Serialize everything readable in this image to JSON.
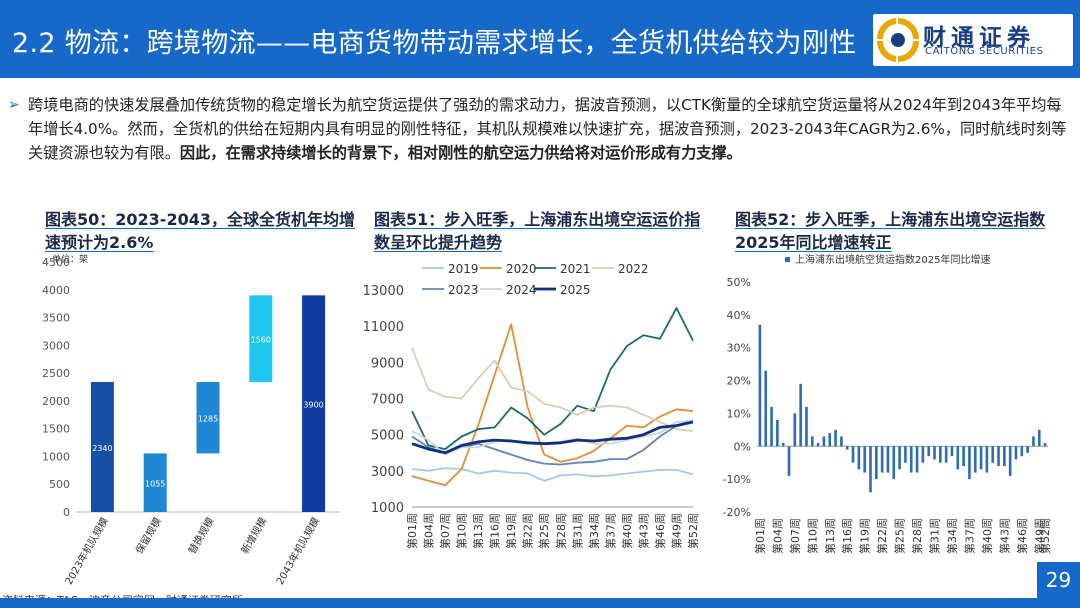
{
  "header": {
    "title": "2.2 物流：跨境物流——电商货物带动需求增长，全货机供给较为刚性",
    "logo_cn": "财通证券",
    "logo_en": "CAITONG SECURITIES"
  },
  "intro": {
    "part1": "跨境电商的快速发展叠加传统货物的稳定增长为航空货运提供了强劲的需求动力，据波音预测，以CTK衡量的全球航空货运量将从2024年到2043年平均每年增长4.0%。然而，全货机的供给在短期内具有明显的刚性特征，其机队规模难以快速扩充，据波音预测，2023-2043年CAGR为2.6%，同时航线时刻等关键资源也较为有限。",
    "part2": "因此，在需求持续增长的背景下，相对刚性的航空运力供给将对运价形成有力支撑。"
  },
  "colors": {
    "header_bg": "#1769c9",
    "c1_dark": "#1550a5",
    "c1_mid": "#1f87d6",
    "c1_light": "#1ec8f0",
    "c1_end": "#0f3aa0",
    "c3_bar": "#2f6db0"
  },
  "chart_titles": {
    "c1": "图表50：2023-2043，全球全货机年均增速预计为2.6%",
    "c2": "图表51：步入旺季，上海浦东出境空运运价指数呈环比提升趋势",
    "c3": "图表52：步入旺季，上海浦东出境空运指数2025年同比增速转正"
  },
  "footer": {
    "source": "资料来源：TAC，波音公司官网，财通证券研究所",
    "page": "29"
  },
  "chart_data": [
    {
      "type": "bar",
      "subtype": "waterfall",
      "unit": "单位：架",
      "categories": [
        "2023年机队规模",
        "保留规模",
        "替换规模",
        "新增规模",
        "2043年机队规模"
      ],
      "values": [
        2340,
        1055,
        1285,
        1560,
        3900
      ],
      "bases": [
        0,
        0,
        1055,
        2340,
        0
      ],
      "bar_colors": [
        "#1550a5",
        "#1f87d6",
        "#1f87d6",
        "#1ec8f0",
        "#0f3aa0"
      ],
      "ylim": [
        0,
        4500
      ],
      "yticks": [
        0,
        500,
        1000,
        1500,
        2000,
        2500,
        3000,
        3500,
        4000,
        4500
      ]
    },
    {
      "type": "line",
      "x": [
        "第01周",
        "第04周",
        "第07周",
        "第10周",
        "第13周",
        "第16周",
        "第19周",
        "第22周",
        "第25周",
        "第28周",
        "第31周",
        "第34周",
        "第37周",
        "第40周",
        "第43周",
        "第46周",
        "第49周",
        "第52周"
      ],
      "ylim": [
        1000,
        13000
      ],
      "yticks": [
        1000,
        3000,
        5000,
        7000,
        9000,
        11000,
        13000
      ],
      "legend_position": "top",
      "series": [
        {
          "name": "2019",
          "color": "#a9c6e8",
          "width": 1.8,
          "values": [
            3100,
            3000,
            3150,
            3100,
            2850,
            3000,
            2900,
            2850,
            2450,
            2750,
            2800,
            2700,
            2750,
            2850,
            2950,
            3050,
            3050,
            2800
          ]
        },
        {
          "name": "2020",
          "color": "#e28d3a",
          "width": 1.8,
          "values": [
            2700,
            2450,
            2200,
            3100,
            5500,
            8300,
            11100,
            6500,
            3900,
            3500,
            3700,
            4100,
            4800,
            5500,
            5400,
            6000,
            6400,
            6300
          ]
        },
        {
          "name": "2021",
          "color": "#1d6b68",
          "width": 1.8,
          "values": [
            6300,
            4400,
            4200,
            4900,
            5300,
            5400,
            6500,
            5900,
            5000,
            5600,
            6600,
            6300,
            8600,
            9900,
            10500,
            10300,
            12000,
            10200
          ]
        },
        {
          "name": "2022",
          "color": "#d8cfb3",
          "width": 1.8,
          "values": [
            9800,
            7500,
            7100,
            7000,
            8100,
            9100,
            7600,
            7400,
            6700,
            6500,
            6100,
            6500,
            6600,
            6500,
            6100,
            5700,
            5300,
            5200
          ]
        },
        {
          "name": "2023",
          "color": "#5e86b5",
          "width": 1.8,
          "values": [
            4900,
            4300,
            4000,
            4300,
            4500,
            4200,
            3900,
            3600,
            3400,
            3350,
            3450,
            3500,
            3650,
            3650,
            4150,
            4900,
            5500,
            5800
          ]
        },
        {
          "name": "2024",
          "color": "#cfd3da",
          "width": 1.8,
          "values": [
            5200,
            4700,
            3900,
            4300,
            4300,
            4600,
            4700,
            4500,
            4500,
            4600,
            4800,
            4500,
            4500,
            4700,
            4900,
            5100,
            5700,
            5800
          ]
        },
        {
          "name": "2025",
          "color": "#0f2f7a",
          "width": 2.8,
          "values": [
            4500,
            4200,
            4000,
            4400,
            4600,
            4700,
            4650,
            4550,
            4500,
            4550,
            4700,
            4650,
            4750,
            4800,
            5000,
            5400,
            5500,
            5700
          ]
        }
      ]
    },
    {
      "type": "bar",
      "legend": "上海浦东出境航空货运指数2025年同比增速",
      "xtick_labels": [
        "第01周",
        "第04周",
        "第07周",
        "第10周",
        "第13周",
        "第16周",
        "第19周",
        "第22周",
        "第25周",
        "第28周",
        "第31周",
        "第34周",
        "第37周",
        "第40周",
        "第43周",
        "第46周",
        "第49周",
        "第52周"
      ],
      "ylim": [
        -20,
        50
      ],
      "yticks": [
        -20,
        -10,
        0,
        10,
        20,
        30,
        40,
        50
      ],
      "unit": "%",
      "values": [
        37,
        23,
        12,
        8,
        1,
        -9,
        10,
        19,
        12,
        3,
        1,
        3,
        4,
        5,
        3,
        -1,
        -5,
        -7,
        -8,
        -14,
        -10,
        -8,
        -8,
        -10,
        -7,
        -5,
        -8,
        -8,
        -5,
        -3,
        -4,
        -5,
        -5,
        -3,
        -7,
        -6,
        -10,
        -8,
        -7,
        -8,
        -5,
        -6,
        -6,
        -9,
        -4,
        -3,
        -2,
        3,
        5,
        1
      ]
    }
  ]
}
